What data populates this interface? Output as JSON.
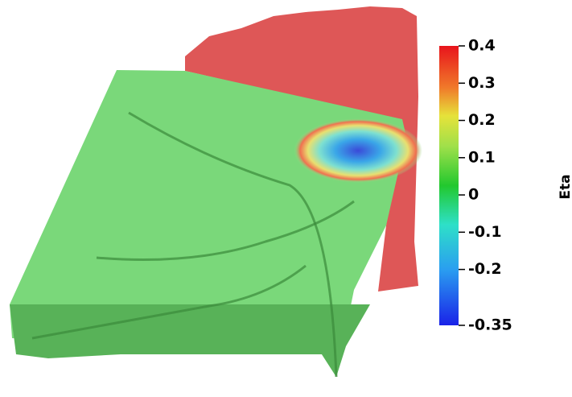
{
  "colorbar": {
    "label": "Eta",
    "lim": [
      -0.35,
      0.4
    ],
    "ticks": [
      0.4,
      0.3,
      0.2,
      0.1,
      0,
      -0.1,
      -0.2,
      -0.35
    ]
  }
}
